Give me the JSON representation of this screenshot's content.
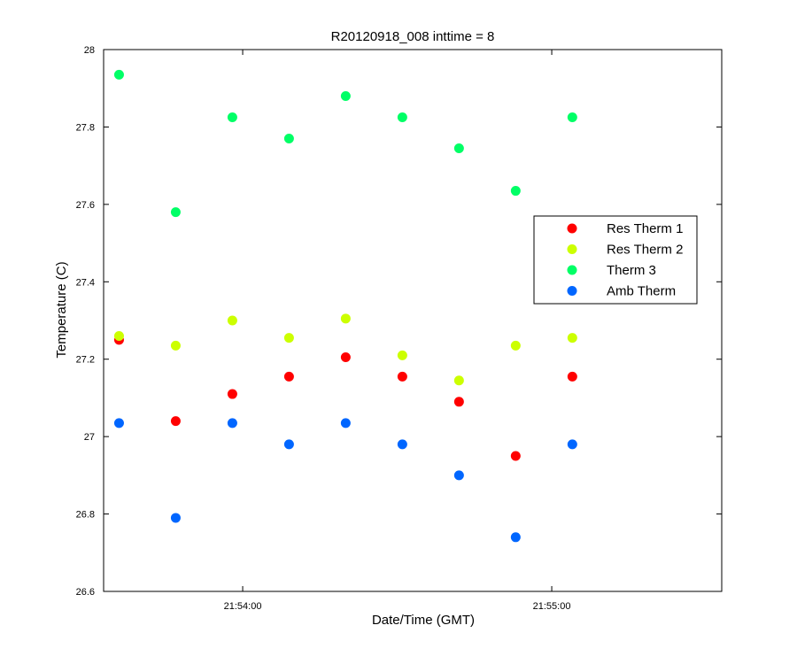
{
  "chart_data": {
    "type": "scatter",
    "title": "R20120918_008 inttime = 8",
    "xlabel": "Date/Time (GMT)",
    "ylabel": "Temperature (C)",
    "x_unit": "time (GMT)",
    "xlim": [
      "21:53:33",
      "21:55:33"
    ],
    "ylim": [
      26.6,
      28
    ],
    "x_ticks": [
      "21:54:00",
      "21:55:00"
    ],
    "y_ticks": [
      "26.6",
      "26.8",
      "27",
      "27.2",
      "27.4",
      "27.6",
      "27.8",
      "28"
    ],
    "grid": false,
    "legend_position": "right",
    "x": [
      "21:53:36",
      "21:53:47",
      "21:53:58",
      "21:54:09",
      "21:54:20",
      "21:54:31",
      "21:54:42",
      "21:54:53",
      "21:55:04"
    ],
    "series": [
      {
        "name": "Res Therm 1",
        "color": "#ff0000",
        "values": [
          27.25,
          27.04,
          27.11,
          27.155,
          27.205,
          27.155,
          27.09,
          26.95,
          27.155
        ]
      },
      {
        "name": "Res Therm 2",
        "color": "#ccff00",
        "values": [
          27.26,
          27.235,
          27.3,
          27.255,
          27.305,
          27.21,
          27.145,
          27.235,
          27.255
        ]
      },
      {
        "name": "Therm 3",
        "color": "#00ff66",
        "values": [
          27.935,
          27.58,
          27.825,
          27.77,
          27.88,
          27.825,
          27.745,
          27.635,
          27.825
        ]
      },
      {
        "name": "Amb Therm",
        "color": "#0066ff",
        "values": [
          27.035,
          26.79,
          27.035,
          26.98,
          27.035,
          26.98,
          26.9,
          26.74,
          26.98
        ]
      }
    ]
  }
}
